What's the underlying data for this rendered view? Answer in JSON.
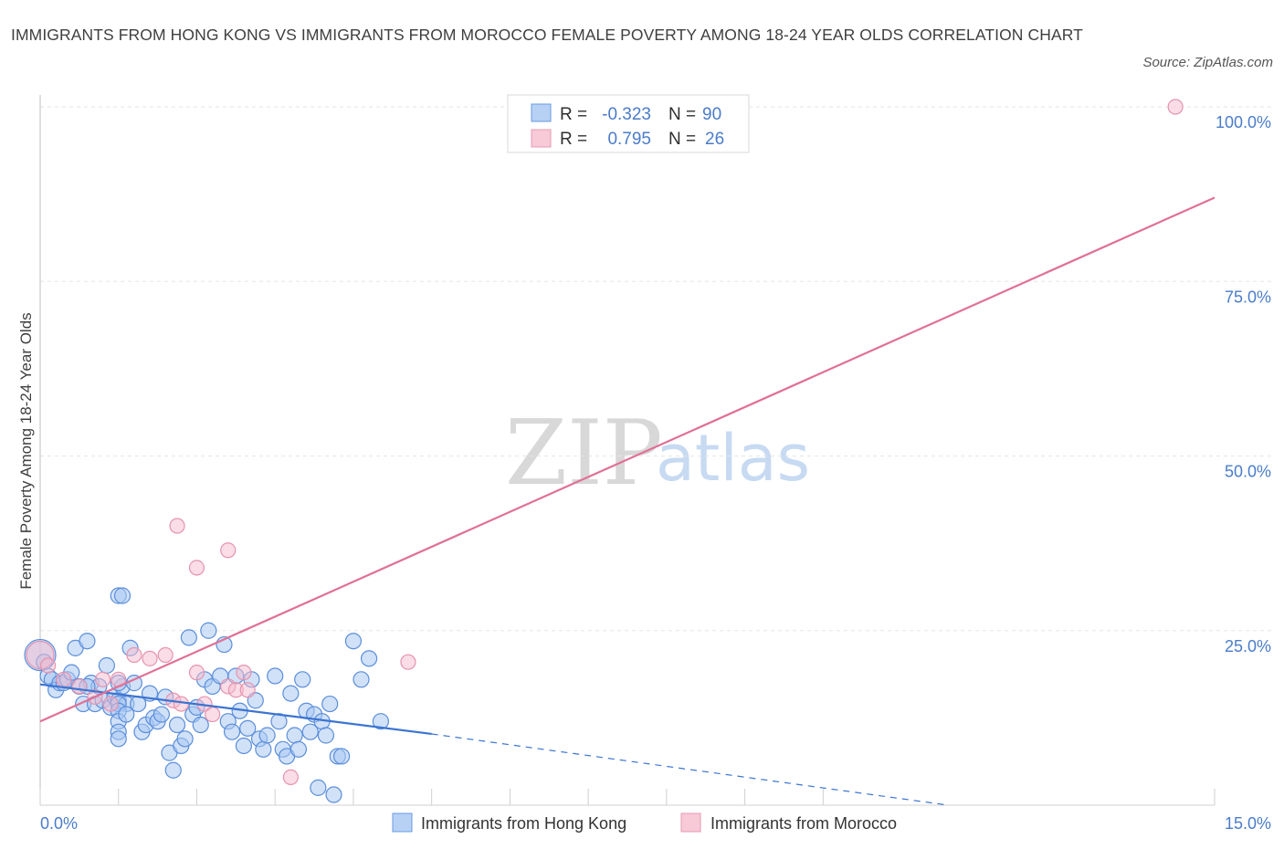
{
  "header": {
    "title": "IMMIGRANTS FROM HONG KONG VS IMMIGRANTS FROM MOROCCO FEMALE POVERTY AMONG 18-24 YEAR OLDS CORRELATION CHART",
    "source": "Source: ZipAtlas.com"
  },
  "watermark": {
    "zip": "ZIP",
    "atlas": "atlas"
  },
  "colors": {
    "blue": "#4a7cc9",
    "blue_fill": "#a9c8f2",
    "blue_line": "#3b74d1",
    "pink": "#e07096",
    "pink_fill": "#f5bccd",
    "grid": "#e6e6e6"
  },
  "chart_data": {
    "type": "scatter",
    "title": "IMMIGRANTS FROM HONG KONG VS IMMIGRANTS FROM MOROCCO FEMALE POVERTY AMONG 18-24 YEAR OLDS CORRELATION CHART",
    "xlabel": "",
    "ylabel": "Female Poverty Among 18-24 Year Olds",
    "xlim": [
      0,
      15
    ],
    "ylim": [
      0,
      100
    ],
    "x_tick_labels": [
      "0.0%",
      "15.0%"
    ],
    "y_ticks": [
      25,
      50,
      75,
      100
    ],
    "y_tick_labels": [
      "25.0%",
      "50.0%",
      "75.0%",
      "100.0%"
    ],
    "grid": true,
    "legend_top": [
      {
        "r_label": "R =",
        "r": "-0.323",
        "n_label": "N =",
        "n": "90"
      },
      {
        "r_label": "R =",
        "r": "0.795",
        "n_label": "N =",
        "n": "26"
      }
    ],
    "series": [
      {
        "name": "Immigrants from Hong Kong",
        "color": "#4a7cc9",
        "trend": {
          "x0": 0,
          "y0": 17.3,
          "x1": 5.0,
          "y1": 10.2,
          "dash_to_x": 11.6,
          "dash_to_y": 0
        },
        "points": [
          [
            0.0,
            21.5
          ],
          [
            0.05,
            20.5
          ],
          [
            0.1,
            18.5
          ],
          [
            0.15,
            18
          ],
          [
            0.2,
            16.5
          ],
          [
            0.25,
            17.5
          ],
          [
            0.3,
            17.5
          ],
          [
            0.35,
            18
          ],
          [
            0.4,
            19
          ],
          [
            0.45,
            22.5
          ],
          [
            0.5,
            17
          ],
          [
            0.55,
            14.5
          ],
          [
            0.6,
            23.5
          ],
          [
            0.65,
            17.5
          ],
          [
            0.7,
            14.5
          ],
          [
            0.75,
            17
          ],
          [
            0.8,
            15
          ],
          [
            0.85,
            20
          ],
          [
            0.9,
            14
          ],
          [
            0.95,
            15.5
          ],
          [
            1.0,
            15
          ],
          [
            1.05,
            17
          ],
          [
            1.1,
            14.5
          ],
          [
            1.15,
            22.5
          ],
          [
            1.2,
            17.5
          ],
          [
            1.25,
            14.5
          ],
          [
            1.0,
            17.5
          ],
          [
            1.0,
            14.5
          ],
          [
            1.0,
            13.5
          ],
          [
            1.0,
            12
          ],
          [
            1.0,
            10.5
          ],
          [
            1.0,
            9.5
          ],
          [
            0.6,
            17
          ],
          [
            1.0,
            30
          ],
          [
            1.05,
            30
          ],
          [
            1.1,
            13
          ],
          [
            1.3,
            10.5
          ],
          [
            1.35,
            11.5
          ],
          [
            1.4,
            16
          ],
          [
            1.45,
            12.5
          ],
          [
            1.5,
            12
          ],
          [
            1.55,
            13
          ],
          [
            1.6,
            15.5
          ],
          [
            1.65,
            7.5
          ],
          [
            1.7,
            5
          ],
          [
            1.75,
            11.5
          ],
          [
            1.8,
            8.5
          ],
          [
            1.85,
            9.5
          ],
          [
            1.9,
            24
          ],
          [
            1.95,
            13
          ],
          [
            2.0,
            14
          ],
          [
            2.05,
            11.5
          ],
          [
            2.1,
            18
          ],
          [
            2.15,
            25
          ],
          [
            2.2,
            17
          ],
          [
            2.3,
            18.5
          ],
          [
            2.35,
            23
          ],
          [
            2.4,
            12
          ],
          [
            2.45,
            10.5
          ],
          [
            2.5,
            18.5
          ],
          [
            2.55,
            13.5
          ],
          [
            2.6,
            8.5
          ],
          [
            2.65,
            11
          ],
          [
            2.7,
            18
          ],
          [
            2.75,
            15
          ],
          [
            2.8,
            9.5
          ],
          [
            2.85,
            8
          ],
          [
            2.9,
            10
          ],
          [
            3.0,
            18.5
          ],
          [
            3.05,
            12
          ],
          [
            3.1,
            8
          ],
          [
            3.15,
            7
          ],
          [
            3.2,
            16
          ],
          [
            3.25,
            10
          ],
          [
            3.3,
            8
          ],
          [
            3.35,
            18
          ],
          [
            3.4,
            13.5
          ],
          [
            3.45,
            10.5
          ],
          [
            3.5,
            13
          ],
          [
            3.55,
            2.5
          ],
          [
            3.6,
            12
          ],
          [
            3.65,
            10
          ],
          [
            3.7,
            14.5
          ],
          [
            3.75,
            1.5
          ],
          [
            3.8,
            7
          ],
          [
            3.85,
            7
          ],
          [
            4.0,
            23.5
          ],
          [
            4.1,
            18
          ],
          [
            4.2,
            21
          ],
          [
            4.35,
            12
          ]
        ]
      },
      {
        "name": "Immigrants from Morocco",
        "color": "#e07096",
        "trend": {
          "x0": 0,
          "y0": 12.0,
          "x1": 15,
          "y1": 87.0
        },
        "points": [
          [
            0.0,
            21.5
          ],
          [
            0.1,
            20
          ],
          [
            0.3,
            18
          ],
          [
            0.5,
            17
          ],
          [
            0.7,
            15.5
          ],
          [
            0.8,
            18
          ],
          [
            0.9,
            14.5
          ],
          [
            1.0,
            18
          ],
          [
            1.2,
            21.5
          ],
          [
            1.4,
            21
          ],
          [
            1.6,
            21.5
          ],
          [
            1.7,
            15
          ],
          [
            1.8,
            14.5
          ],
          [
            2.0,
            19
          ],
          [
            2.1,
            14.5
          ],
          [
            2.2,
            13
          ],
          [
            2.4,
            17
          ],
          [
            2.5,
            16.5
          ],
          [
            2.6,
            19
          ],
          [
            1.75,
            40
          ],
          [
            2.0,
            34
          ],
          [
            2.4,
            36.5
          ],
          [
            2.65,
            16.5
          ],
          [
            3.2,
            4
          ],
          [
            4.7,
            20.5
          ],
          [
            14.5,
            100
          ]
        ]
      }
    ]
  }
}
